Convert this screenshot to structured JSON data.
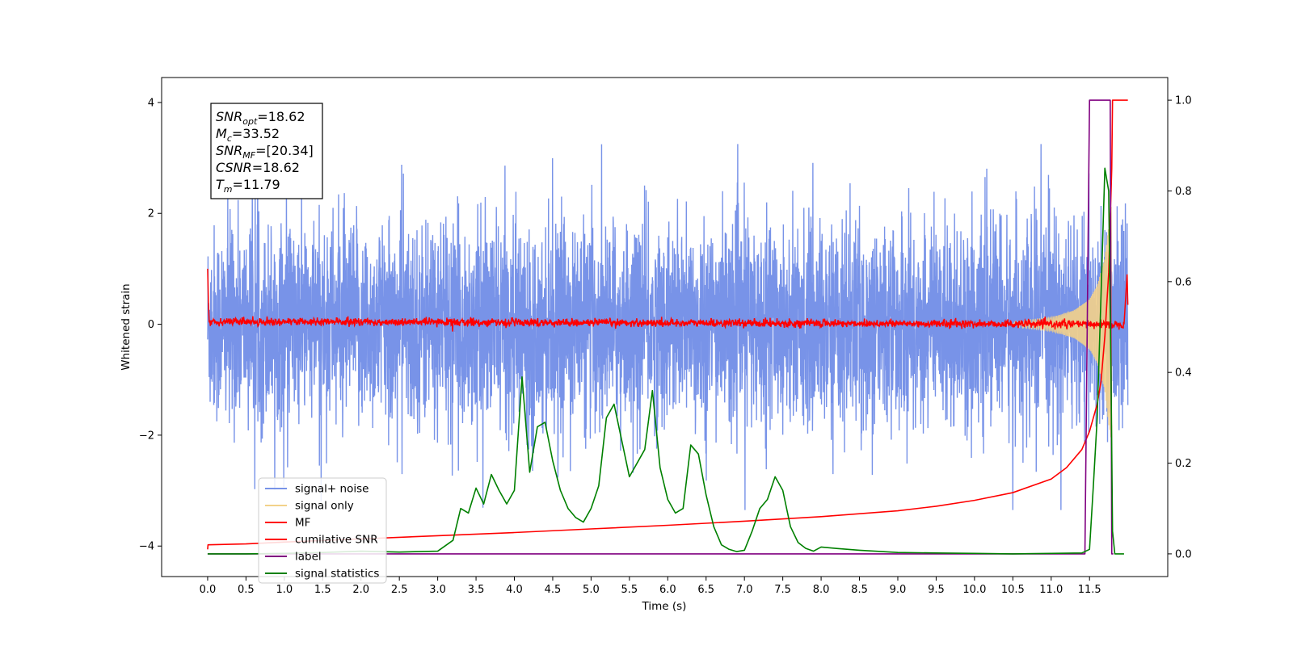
{
  "chart_data": {
    "type": "line",
    "title": "",
    "xlabel": "Time (s)",
    "ylabel": "Whitened strain",
    "xlim": [
      -0.6,
      12.52
    ],
    "ylim": [
      -4.55,
      4.45
    ],
    "ylim_right": [
      -0.05,
      1.05
    ],
    "x_ticks": [
      0.0,
      0.5,
      1.0,
      1.5,
      2.0,
      2.5,
      3.0,
      3.5,
      4.0,
      4.5,
      5.0,
      5.5,
      6.0,
      6.5,
      7.0,
      7.5,
      8.0,
      8.5,
      9.0,
      9.5,
      10.0,
      10.5,
      11.0,
      11.5
    ],
    "x_tick_labels": [
      "0.0",
      "0.5",
      "1.0",
      "1.5",
      "2.0",
      "2.5",
      "3.0",
      "3.5",
      "4.0",
      "4.5",
      "5.0",
      "5.5",
      "6.0",
      "6.5",
      "7.0",
      "7.5",
      "8.0",
      "8.5",
      "9.0",
      "9.5",
      "10.0",
      "10.5",
      "11.0",
      "11.5"
    ],
    "y_ticks": [
      -4,
      -2,
      0,
      2,
      4
    ],
    "y_tick_labels": [
      "−4",
      "−2",
      "0",
      "2",
      "4"
    ],
    "y_ticks_right": [
      0.0,
      0.2,
      0.4,
      0.6,
      0.8,
      1.0
    ],
    "y_tick_labels_right": [
      "0.0",
      "0.2",
      "0.4",
      "0.6",
      "0.8",
      "1.0"
    ],
    "grid": false,
    "legend_position": "lower-left",
    "annotation": {
      "lines": [
        {
          "sym": "SNR",
          "sub": "opt",
          "value": "=18.62"
        },
        {
          "sym": "M",
          "sub": "c",
          "value": "=33.52"
        },
        {
          "sym": "SNR",
          "sub": "MF",
          "value": "=[20.34]"
        },
        {
          "sym": "CSNR",
          "sub": "",
          "value": "=18.62"
        },
        {
          "sym": "T",
          "sub": "m",
          "value": "=11.79"
        }
      ]
    },
    "series": [
      {
        "name": "signal+ noise",
        "color": "#7893e8",
        "axis": "left",
        "description_values": {
          "x_start": 0.0,
          "x_end": 12.0,
          "typical_amplitude": 1.6,
          "peak_max": 3.25,
          "peak_min": -3.35
        }
      },
      {
        "name": "signal only",
        "color": "#f3d28a",
        "axis": "left",
        "envelope": {
          "x": [
            10.5,
            11.0,
            11.3,
            11.5,
            11.6,
            11.7,
            11.75,
            11.79
          ],
          "amp": [
            0.05,
            0.12,
            0.25,
            0.45,
            0.7,
            1.2,
            1.8,
            2.2
          ]
        }
      },
      {
        "name": "MF",
        "color": "#ff0000",
        "axis": "left",
        "points": {
          "x": [
            0.0,
            0.01,
            0.02,
            11.95,
            11.99,
            12.0
          ],
          "y": [
            1.0,
            0.4,
            0.05,
            0.0,
            0.9,
            0.35
          ]
        },
        "noise_amplitude": 0.07
      },
      {
        "name": "cumilative SNR",
        "color": "#ff0000",
        "axis": "right",
        "points": {
          "x": [
            0.0,
            0.005,
            0.5,
            1.0,
            2.0,
            3.0,
            4.0,
            5.0,
            6.0,
            7.0,
            8.0,
            9.0,
            9.5,
            10.0,
            10.5,
            11.0,
            11.2,
            11.4,
            11.5,
            11.6,
            11.65,
            11.7,
            11.75,
            11.79,
            11.8,
            11.9,
            12.0
          ],
          "y": [
            0.01,
            0.02,
            0.022,
            0.026,
            0.033,
            0.04,
            0.047,
            0.055,
            0.063,
            0.072,
            0.082,
            0.095,
            0.105,
            0.118,
            0.135,
            0.165,
            0.19,
            0.23,
            0.27,
            0.33,
            0.38,
            0.48,
            0.62,
            0.85,
            1.0,
            1.0,
            1.0
          ]
        }
      },
      {
        "name": "label",
        "color": "#800080",
        "axis": "right",
        "points": {
          "x": [
            0.0,
            11.44,
            11.5,
            11.52,
            11.77,
            11.79,
            11.81
          ],
          "y": [
            0.0,
            0.0,
            1.0,
            1.0,
            1.0,
            0.0,
            0.0
          ]
        }
      },
      {
        "name": "signal statistics",
        "color": "#008000",
        "axis": "right",
        "points": {
          "x": [
            0.0,
            0.5,
            1.0,
            1.5,
            2.0,
            2.5,
            3.0,
            3.2,
            3.3,
            3.4,
            3.5,
            3.6,
            3.7,
            3.8,
            3.9,
            4.0,
            4.1,
            4.2,
            4.3,
            4.4,
            4.5,
            4.6,
            4.7,
            4.8,
            4.9,
            5.0,
            5.1,
            5.2,
            5.3,
            5.4,
            5.5,
            5.6,
            5.7,
            5.8,
            5.9,
            6.0,
            6.1,
            6.2,
            6.3,
            6.4,
            6.5,
            6.6,
            6.7,
            6.8,
            6.9,
            7.0,
            7.1,
            7.2,
            7.3,
            7.4,
            7.5,
            7.6,
            7.7,
            7.8,
            7.9,
            8.0,
            8.2,
            8.5,
            9.0,
            9.5,
            10.0,
            10.5,
            11.0,
            11.4,
            11.5,
            11.55,
            11.6,
            11.65,
            11.7,
            11.75,
            11.78,
            11.8,
            11.83,
            11.87,
            11.95
          ],
          "y": [
            0.0,
            0.0,
            0.001,
            0.003,
            0.006,
            0.004,
            0.006,
            0.03,
            0.1,
            0.09,
            0.145,
            0.11,
            0.175,
            0.14,
            0.11,
            0.14,
            0.39,
            0.18,
            0.28,
            0.29,
            0.205,
            0.14,
            0.1,
            0.08,
            0.07,
            0.1,
            0.15,
            0.3,
            0.33,
            0.25,
            0.17,
            0.2,
            0.23,
            0.36,
            0.19,
            0.12,
            0.09,
            0.1,
            0.24,
            0.22,
            0.13,
            0.06,
            0.02,
            0.01,
            0.005,
            0.008,
            0.05,
            0.1,
            0.12,
            0.17,
            0.14,
            0.06,
            0.025,
            0.012,
            0.006,
            0.015,
            0.012,
            0.008,
            0.003,
            0.002,
            0.001,
            0.0,
            0.001,
            0.002,
            0.01,
            0.15,
            0.3,
            0.57,
            0.85,
            0.8,
            0.4,
            0.05,
            0.0,
            0.0,
            0.0
          ]
        }
      }
    ]
  }
}
